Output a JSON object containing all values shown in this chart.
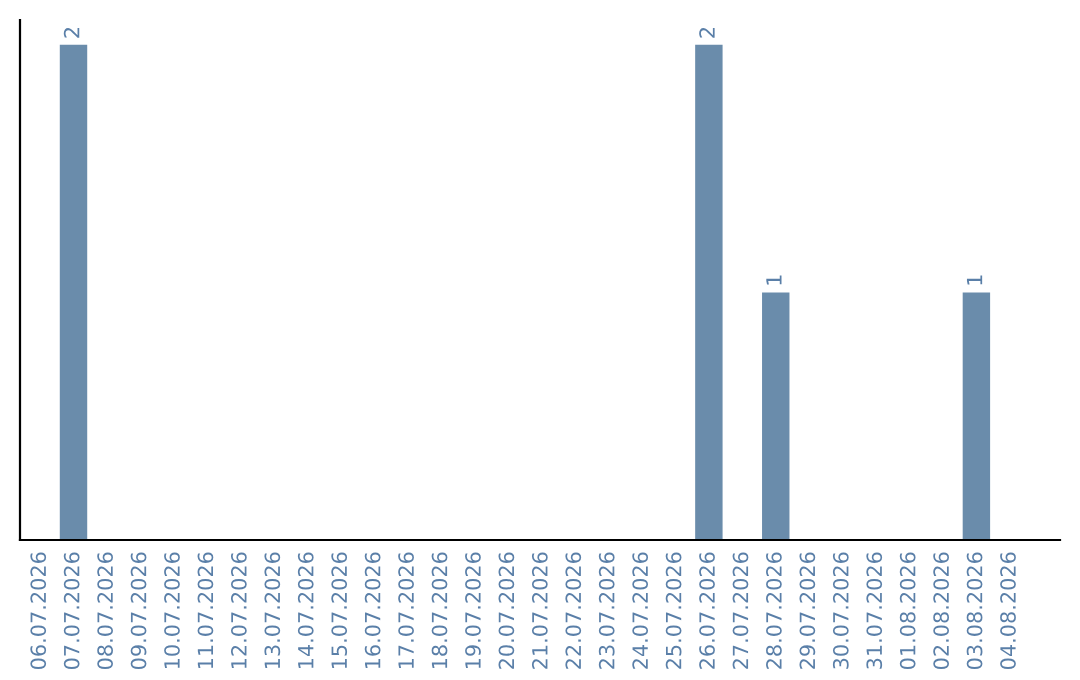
{
  "chart_data": {
    "type": "bar",
    "categories": [
      "06.07.2026",
      "07.07.2026",
      "08.07.2026",
      "09.07.2026",
      "10.07.2026",
      "11.07.2026",
      "12.07.2026",
      "13.07.2026",
      "14.07.2026",
      "15.07.2026",
      "16.07.2026",
      "17.07.2026",
      "18.07.2026",
      "19.07.2026",
      "20.07.2026",
      "21.07.2026",
      "22.07.2026",
      "23.07.2026",
      "24.07.2026",
      "25.07.2026",
      "26.07.2026",
      "27.07.2026",
      "28.07.2026",
      "29.07.2026",
      "30.07.2026",
      "31.07.2026",
      "01.08.2026",
      "02.08.2026",
      "03.08.2026",
      "04.08.2026"
    ],
    "values": [
      0,
      2,
      0,
      0,
      0,
      0,
      0,
      0,
      0,
      0,
      0,
      0,
      0,
      0,
      0,
      0,
      0,
      0,
      0,
      0,
      2,
      0,
      1,
      0,
      0,
      0,
      0,
      0,
      1,
      0
    ],
    "value_labels": [
      null,
      "2",
      null,
      null,
      null,
      null,
      null,
      null,
      null,
      null,
      null,
      null,
      null,
      null,
      null,
      null,
      null,
      null,
      null,
      null,
      "2",
      null,
      "1",
      null,
      null,
      null,
      null,
      null,
      "1",
      null
    ],
    "color": "#6a8cab",
    "grid": false,
    "legend": false
  }
}
